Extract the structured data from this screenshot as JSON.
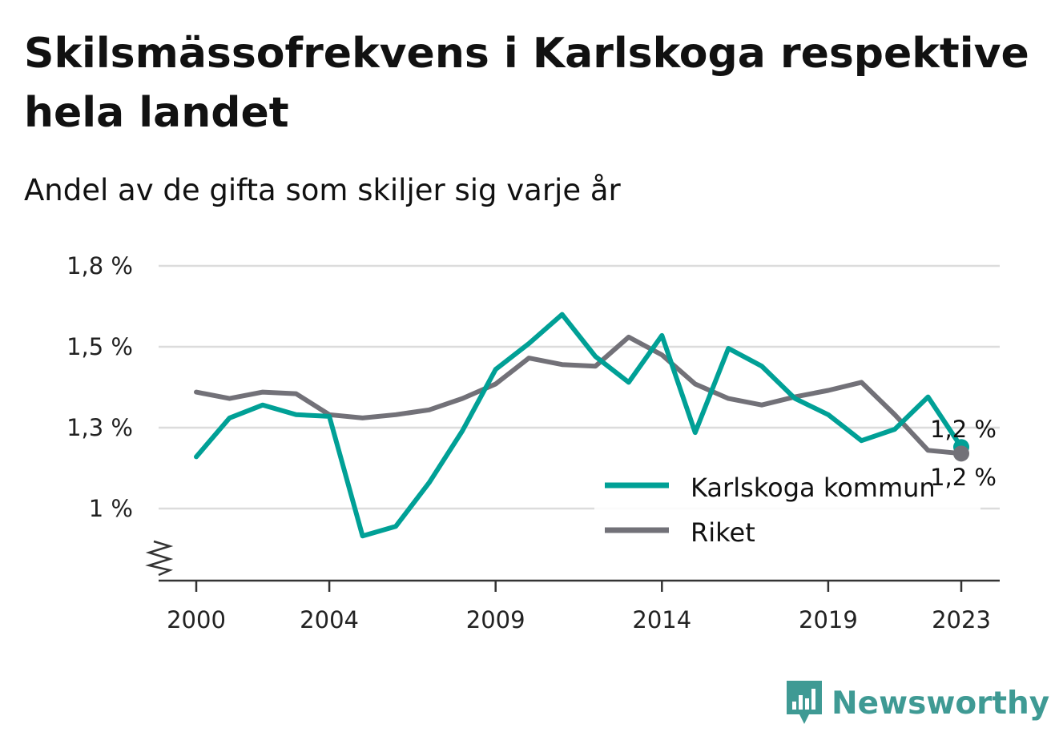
{
  "header": {
    "title": "Skilsmässofrekvens i Karlskoga respektive hela landet",
    "subtitle": "Andel av de gifta som skiljer sig varje år"
  },
  "brand": {
    "name": "Newsworthy",
    "icon": "newsworthy-logo-icon",
    "color": "#3f9a94"
  },
  "chart_data": {
    "type": "line",
    "title": "Skilsmässofrekvens i Karlskoga respektive hela landet",
    "subtitle": "Andel av de gifta som skiljer sig varje år",
    "xlabel": "",
    "ylabel": "",
    "x": [
      2000,
      2001,
      2002,
      2003,
      2004,
      2005,
      2006,
      2007,
      2008,
      2009,
      2010,
      2011,
      2012,
      2013,
      2014,
      2015,
      2016,
      2017,
      2018,
      2019,
      2020,
      2021,
      2022,
      2023
    ],
    "x_ticks": [
      2000,
      2004,
      2009,
      2014,
      2019,
      2023
    ],
    "x_tick_labels": [
      "2000",
      "2004",
      "2009",
      "2014",
      "2019",
      "2023"
    ],
    "y_ticks": [
      1.0,
      1.25,
      1.5,
      1.75
    ],
    "y_tick_labels": [
      "1 %",
      "1,3 %",
      "1,5 %",
      "1,8 %"
    ],
    "ylim": [
      0.78,
      1.75
    ],
    "axis_break": true,
    "grid": true,
    "legend": "bottom-right",
    "series": [
      {
        "name": "Karlskoga kommun",
        "color": "#00a096",
        "values": [
          1.16,
          1.28,
          1.32,
          1.29,
          1.285,
          0.915,
          0.945,
          1.08,
          1.24,
          1.43,
          1.51,
          1.6,
          1.47,
          1.39,
          1.535,
          1.235,
          1.495,
          1.44,
          1.34,
          1.29,
          1.21,
          1.245,
          1.345,
          1.19
        ],
        "end_label": "1,2 %"
      },
      {
        "name": "Riket",
        "color": "#727178",
        "values": [
          1.36,
          1.34,
          1.36,
          1.355,
          1.29,
          1.28,
          1.29,
          1.305,
          1.34,
          1.385,
          1.465,
          1.445,
          1.44,
          1.53,
          1.475,
          1.385,
          1.34,
          1.32,
          1.345,
          1.365,
          1.39,
          1.29,
          1.18,
          1.17
        ],
        "end_label": "1,2 %"
      }
    ]
  }
}
